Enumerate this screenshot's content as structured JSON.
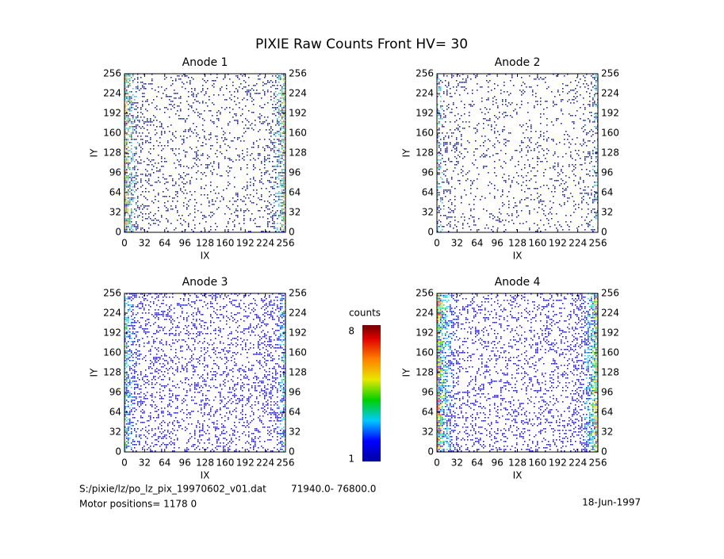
{
  "title": "PIXIE Raw Counts Front HV= 30",
  "chart_data": [
    {
      "type": "heatmap",
      "title": "Anode 1",
      "xlabel": "IX",
      "ylabel": "IY",
      "xlim": [
        0,
        256
      ],
      "ylim": [
        0,
        256
      ],
      "xticks": [
        0,
        32,
        64,
        96,
        128,
        160,
        192,
        224,
        256
      ],
      "yticks": [
        0,
        32,
        64,
        96,
        128,
        160,
        192,
        224,
        256
      ]
    },
    {
      "type": "heatmap",
      "title": "Anode 2",
      "xlabel": "IX",
      "ylabel": "IY",
      "xlim": [
        0,
        256
      ],
      "ylim": [
        0,
        256
      ],
      "xticks": [
        0,
        32,
        64,
        96,
        128,
        160,
        192,
        224,
        256
      ],
      "yticks": [
        0,
        32,
        64,
        96,
        128,
        160,
        192,
        224,
        256
      ]
    },
    {
      "type": "heatmap",
      "title": "Anode 3",
      "xlabel": "IX",
      "ylabel": "IY",
      "xlim": [
        0,
        256
      ],
      "ylim": [
        0,
        256
      ],
      "xticks": [
        0,
        32,
        64,
        96,
        128,
        160,
        192,
        224,
        256
      ],
      "yticks": [
        0,
        32,
        64,
        96,
        128,
        160,
        192,
        224,
        256
      ]
    },
    {
      "type": "heatmap",
      "title": "Anode 4",
      "xlabel": "IX",
      "ylabel": "IY",
      "xlim": [
        0,
        256
      ],
      "ylim": [
        0,
        256
      ],
      "xticks": [
        0,
        32,
        64,
        96,
        128,
        160,
        192,
        224,
        256
      ],
      "yticks": [
        0,
        32,
        64,
        96,
        128,
        160,
        192,
        224,
        256
      ]
    }
  ],
  "colorbar": {
    "label": "counts",
    "range": [
      1,
      8
    ],
    "ticks": [
      1,
      8
    ]
  },
  "footer": {
    "file": "S:/pixie/lz/po_lz_pix_19970602_v01.dat",
    "time_range": "71940.0- 76800.0",
    "motor": "Motor positions= 1178 0",
    "date": "18-Jun-1997"
  }
}
